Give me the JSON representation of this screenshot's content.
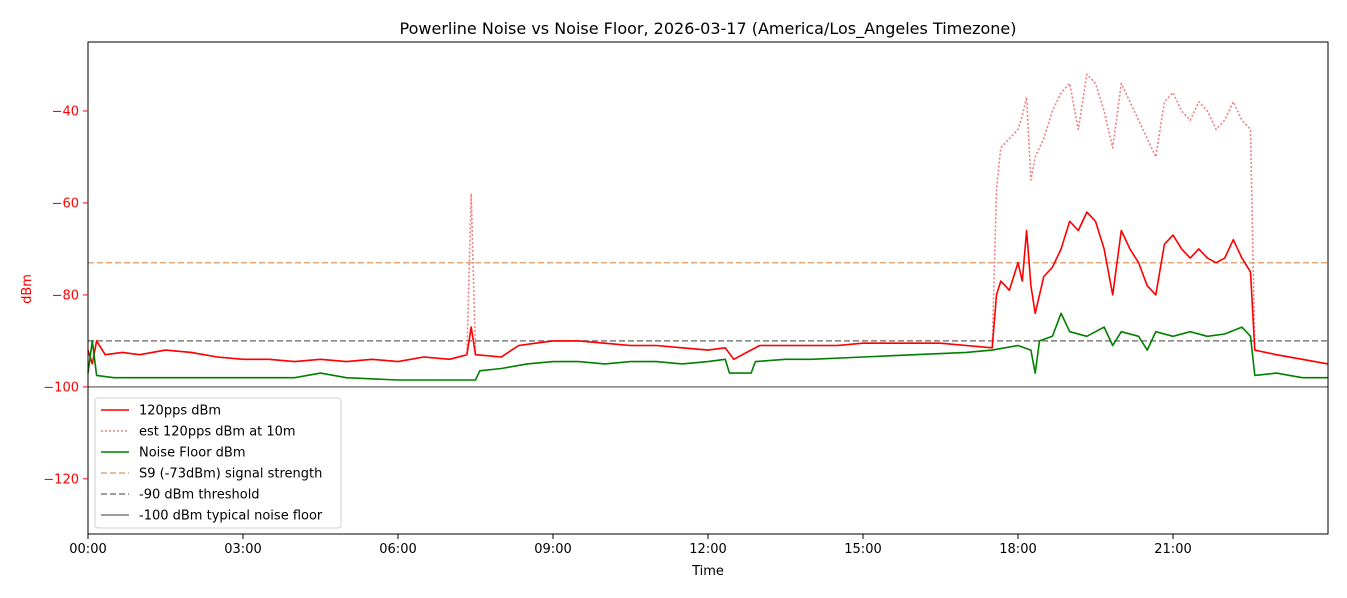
{
  "chart_data": {
    "type": "line",
    "title": "Powerline Noise vs Noise Floor, 2026-03-17 (America/Los_Angeles Timezone)",
    "xlabel": "Time",
    "ylabel": "dBm",
    "xlim": [
      "00:00",
      "24:00"
    ],
    "ylim": [
      -132,
      -25
    ],
    "x_ticks": [
      "00:00",
      "03:00",
      "06:00",
      "09:00",
      "12:00",
      "15:00",
      "18:00",
      "21:00"
    ],
    "y_ticks": [
      -40,
      -60,
      -80,
      -100,
      -120
    ],
    "legend_position": "lower-left",
    "grid": false,
    "series": [
      {
        "name": "120pps dBm",
        "color": "#ff0000",
        "style": "solid",
        "points": [
          [
            "00:00",
            -92
          ],
          [
            "00:05",
            -95
          ],
          [
            "00:10",
            -90
          ],
          [
            "00:20",
            -93
          ],
          [
            "00:40",
            -92.5
          ],
          [
            "01:00",
            -93
          ],
          [
            "01:30",
            -92
          ],
          [
            "02:00",
            -92.5
          ],
          [
            "02:30",
            -93.5
          ],
          [
            "03:00",
            -94
          ],
          [
            "03:30",
            -94
          ],
          [
            "04:00",
            -94.5
          ],
          [
            "04:30",
            -94
          ],
          [
            "05:00",
            -94.5
          ],
          [
            "05:30",
            -94
          ],
          [
            "06:00",
            -94.5
          ],
          [
            "06:30",
            -93.5
          ],
          [
            "07:00",
            -94
          ],
          [
            "07:20",
            -93
          ],
          [
            "07:25",
            -87
          ],
          [
            "07:30",
            -93
          ],
          [
            "08:00",
            -93.5
          ],
          [
            "08:20",
            -91
          ],
          [
            "08:40",
            -90.5
          ],
          [
            "09:00",
            -90
          ],
          [
            "09:30",
            -90
          ],
          [
            "10:00",
            -90.5
          ],
          [
            "10:30",
            -91
          ],
          [
            "11:00",
            -91
          ],
          [
            "11:30",
            -91.5
          ],
          [
            "12:00",
            -92
          ],
          [
            "12:20",
            -91.5
          ],
          [
            "12:30",
            -94
          ],
          [
            "12:40",
            -93
          ],
          [
            "13:00",
            -91
          ],
          [
            "13:30",
            -91
          ],
          [
            "14:00",
            -91
          ],
          [
            "14:30",
            -91
          ],
          [
            "15:00",
            -90.5
          ],
          [
            "15:30",
            -90.5
          ],
          [
            "16:00",
            -90.5
          ],
          [
            "16:30",
            -90.5
          ],
          [
            "17:00",
            -91
          ],
          [
            "17:30",
            -91.5
          ],
          [
            "17:35",
            -80
          ],
          [
            "17:40",
            -77
          ],
          [
            "17:50",
            -79
          ],
          [
            "18:00",
            -73
          ],
          [
            "18:05",
            -77
          ],
          [
            "18:10",
            -66
          ],
          [
            "18:15",
            -78
          ],
          [
            "18:20",
            -84
          ],
          [
            "18:25",
            -80
          ],
          [
            "18:30",
            -76
          ],
          [
            "18:40",
            -74
          ],
          [
            "18:50",
            -70
          ],
          [
            "19:00",
            -64
          ],
          [
            "19:10",
            -66
          ],
          [
            "19:20",
            -62
          ],
          [
            "19:30",
            -64
          ],
          [
            "19:40",
            -70
          ],
          [
            "19:50",
            -80
          ],
          [
            "20:00",
            -66
          ],
          [
            "20:10",
            -70
          ],
          [
            "20:20",
            -73
          ],
          [
            "20:30",
            -78
          ],
          [
            "20:40",
            -80
          ],
          [
            "20:50",
            -69
          ],
          [
            "21:00",
            -67
          ],
          [
            "21:10",
            -70
          ],
          [
            "21:20",
            -72
          ],
          [
            "21:30",
            -70
          ],
          [
            "21:40",
            -72
          ],
          [
            "21:50",
            -73
          ],
          [
            "22:00",
            -72
          ],
          [
            "22:10",
            -68
          ],
          [
            "22:20",
            -72
          ],
          [
            "22:30",
            -75
          ],
          [
            "22:35",
            -92
          ],
          [
            "23:00",
            -93
          ],
          [
            "23:30",
            -94
          ],
          [
            "24:00",
            -95
          ]
        ]
      },
      {
        "name": "est 120pps dBm at 10m",
        "color": "#f08080",
        "style": "dotted",
        "points": [
          [
            "00:00",
            -92
          ],
          [
            "00:05",
            -95
          ],
          [
            "00:10",
            -90
          ],
          [
            "00:20",
            -93
          ],
          [
            "00:40",
            -92.5
          ],
          [
            "01:00",
            -93
          ],
          [
            "01:30",
            -92
          ],
          [
            "02:00",
            -92.5
          ],
          [
            "02:30",
            -93.5
          ],
          [
            "03:00",
            -94
          ],
          [
            "03:30",
            -94
          ],
          [
            "04:00",
            -94.5
          ],
          [
            "04:30",
            -94
          ],
          [
            "05:00",
            -94.5
          ],
          [
            "05:30",
            -94
          ],
          [
            "06:00",
            -94.5
          ],
          [
            "06:30",
            -93.5
          ],
          [
            "07:00",
            -94
          ],
          [
            "07:20",
            -93
          ],
          [
            "07:25",
            -58
          ],
          [
            "07:30",
            -93
          ],
          [
            "08:00",
            -93.5
          ],
          [
            "08:20",
            -91
          ],
          [
            "08:40",
            -90.5
          ],
          [
            "09:00",
            -90
          ],
          [
            "09:30",
            -90
          ],
          [
            "10:00",
            -90.5
          ],
          [
            "10:30",
            -91
          ],
          [
            "11:00",
            -91
          ],
          [
            "11:30",
            -91.5
          ],
          [
            "12:00",
            -92
          ],
          [
            "12:20",
            -91.5
          ],
          [
            "12:30",
            -94
          ],
          [
            "12:40",
            -93
          ],
          [
            "13:00",
            -91
          ],
          [
            "13:30",
            -91
          ],
          [
            "14:00",
            -91
          ],
          [
            "14:30",
            -91
          ],
          [
            "15:00",
            -90.5
          ],
          [
            "15:30",
            -90.5
          ],
          [
            "16:00",
            -90.5
          ],
          [
            "16:30",
            -90.5
          ],
          [
            "17:00",
            -91
          ],
          [
            "17:30",
            -91.5
          ],
          [
            "17:35",
            -57
          ],
          [
            "17:40",
            -48
          ],
          [
            "17:50",
            -46
          ],
          [
            "18:00",
            -44
          ],
          [
            "18:05",
            -41
          ],
          [
            "18:10",
            -37
          ],
          [
            "18:15",
            -55
          ],
          [
            "18:20",
            -50
          ],
          [
            "18:25",
            -48
          ],
          [
            "18:30",
            -46
          ],
          [
            "18:40",
            -40
          ],
          [
            "18:50",
            -36
          ],
          [
            "19:00",
            -34
          ],
          [
            "19:10",
            -44
          ],
          [
            "19:20",
            -32
          ],
          [
            "19:30",
            -34
          ],
          [
            "19:40",
            -40
          ],
          [
            "19:50",
            -48
          ],
          [
            "20:00",
            -34
          ],
          [
            "20:10",
            -38
          ],
          [
            "20:20",
            -42
          ],
          [
            "20:30",
            -46
          ],
          [
            "20:40",
            -50
          ],
          [
            "20:50",
            -38
          ],
          [
            "21:00",
            -36
          ],
          [
            "21:10",
            -40
          ],
          [
            "21:20",
            -42
          ],
          [
            "21:30",
            -38
          ],
          [
            "21:40",
            -40
          ],
          [
            "21:50",
            -44
          ],
          [
            "22:00",
            -42
          ],
          [
            "22:10",
            -38
          ],
          [
            "22:20",
            -42
          ],
          [
            "22:30",
            -44
          ],
          [
            "22:35",
            -92
          ],
          [
            "23:00",
            -93
          ],
          [
            "23:30",
            -94
          ],
          [
            "24:00",
            -95
          ]
        ]
      },
      {
        "name": "Noise Floor dBm",
        "color": "#008000",
        "style": "solid",
        "points": [
          [
            "00:00",
            -97
          ],
          [
            "00:05",
            -90
          ],
          [
            "00:10",
            -97.5
          ],
          [
            "00:30",
            -98
          ],
          [
            "01:00",
            -98
          ],
          [
            "02:00",
            -98
          ],
          [
            "03:00",
            -98
          ],
          [
            "04:00",
            -98
          ],
          [
            "04:30",
            -97
          ],
          [
            "05:00",
            -98
          ],
          [
            "06:00",
            -98.5
          ],
          [
            "07:00",
            -98.5
          ],
          [
            "07:30",
            -98.5
          ],
          [
            "07:35",
            -96.5
          ],
          [
            "08:00",
            -96
          ],
          [
            "08:30",
            -95
          ],
          [
            "09:00",
            -94.5
          ],
          [
            "09:30",
            -94.5
          ],
          [
            "10:00",
            -95
          ],
          [
            "10:30",
            -94.5
          ],
          [
            "11:00",
            -94.5
          ],
          [
            "11:30",
            -95
          ],
          [
            "12:00",
            -94.5
          ],
          [
            "12:20",
            -94
          ],
          [
            "12:25",
            -97
          ],
          [
            "12:50",
            -97
          ],
          [
            "12:55",
            -94.5
          ],
          [
            "13:30",
            -94
          ],
          [
            "14:00",
            -94
          ],
          [
            "15:00",
            -93.5
          ],
          [
            "16:00",
            -93
          ],
          [
            "17:00",
            -92.5
          ],
          [
            "17:30",
            -92
          ],
          [
            "18:00",
            -91
          ],
          [
            "18:15",
            -92
          ],
          [
            "18:20",
            -97
          ],
          [
            "18:25",
            -90
          ],
          [
            "18:40",
            -89
          ],
          [
            "18:50",
            -84
          ],
          [
            "19:00",
            -88
          ],
          [
            "19:20",
            -89
          ],
          [
            "19:40",
            -87
          ],
          [
            "19:50",
            -91
          ],
          [
            "20:00",
            -88
          ],
          [
            "20:20",
            -89
          ],
          [
            "20:30",
            -92
          ],
          [
            "20:40",
            -88
          ],
          [
            "21:00",
            -89
          ],
          [
            "21:20",
            -88
          ],
          [
            "21:40",
            -89
          ],
          [
            "22:00",
            -88.5
          ],
          [
            "22:20",
            -87
          ],
          [
            "22:30",
            -89
          ],
          [
            "22:35",
            -97.5
          ],
          [
            "23:00",
            -97
          ],
          [
            "23:30",
            -98
          ],
          [
            "24:00",
            -98
          ]
        ]
      }
    ],
    "reference_lines": [
      {
        "name": "S9 (-73dBm) signal strength",
        "y": -73,
        "color": "#e0a878",
        "style": "dashed"
      },
      {
        "name": "-90 dBm threshold",
        "y": -90,
        "color": "#7f7f7f",
        "style": "dashed"
      },
      {
        "name": "-100 dBm typical noise floor",
        "y": -100,
        "color": "#7f7f7f",
        "style": "solid"
      }
    ],
    "colors": {
      "y_axis_text": "#ff0000"
    }
  }
}
